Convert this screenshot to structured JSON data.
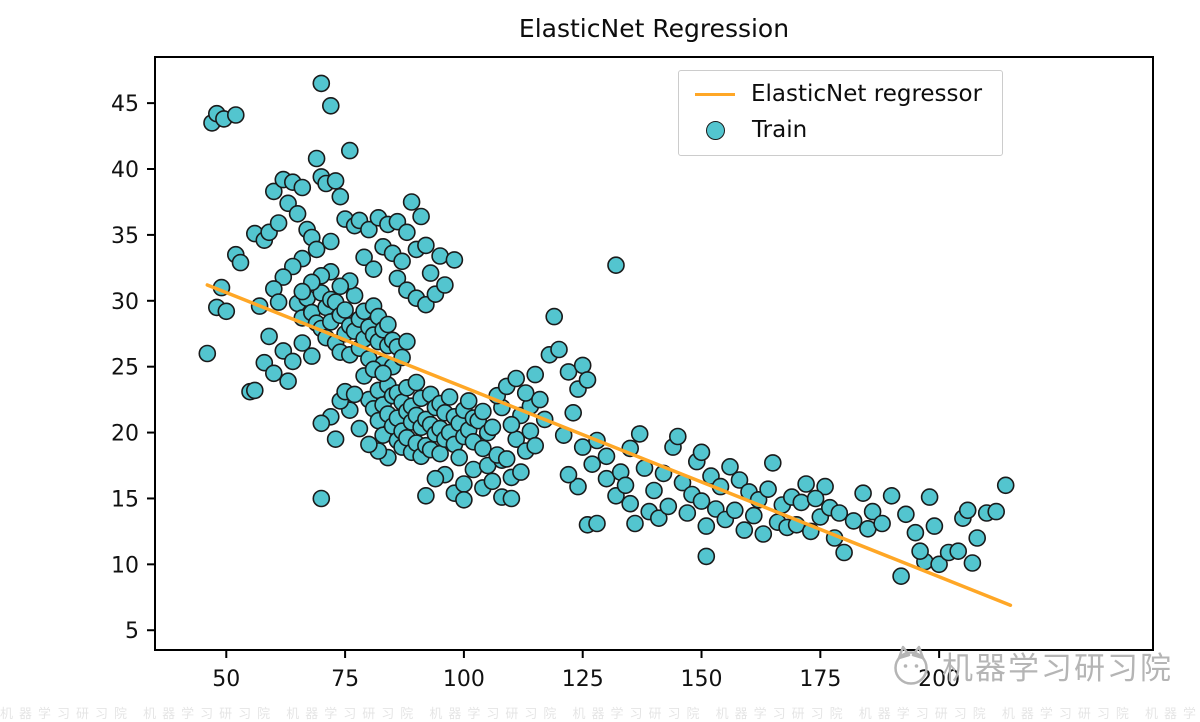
{
  "page_title": "ElasticNet Regression",
  "watermark": {
    "text": "机器学习研习院"
  },
  "chart_data": {
    "type": "scatter",
    "title": "ElasticNet Regression",
    "xlabel": "",
    "ylabel": "",
    "xlim": [
      35,
      245
    ],
    "ylim": [
      3.5,
      48.5
    ],
    "x_ticks": [
      50,
      75,
      100,
      125,
      150,
      175,
      200
    ],
    "y_ticks": [
      5,
      10,
      15,
      20,
      25,
      30,
      35,
      40,
      45
    ],
    "grid": false,
    "legend": {
      "position": "upper right",
      "entries": [
        {
          "label": "ElasticNet regressor",
          "type": "line",
          "color": "#ffa726"
        },
        {
          "label": "Train",
          "type": "marker",
          "color": "#53c5cf"
        }
      ]
    },
    "series": [
      {
        "name": "ElasticNet regressor",
        "type": "line",
        "color": "#ffa726",
        "points": [
          [
            46,
            31.2
          ],
          [
            215,
            6.9
          ]
        ]
      },
      {
        "name": "Train",
        "type": "scatter",
        "marker_color": "#53c5cf",
        "edge_color": "#1a1a1a",
        "points": [
          [
            47,
            43.5
          ],
          [
            48,
            44.2
          ],
          [
            49.5,
            43.8
          ],
          [
            52,
            44.1
          ],
          [
            46,
            26
          ],
          [
            48,
            29.5
          ],
          [
            49,
            31
          ],
          [
            50,
            29.2
          ],
          [
            52,
            33.5
          ],
          [
            53,
            32.9
          ],
          [
            55,
            23.1
          ],
          [
            57,
            29.6
          ],
          [
            58,
            25.3
          ],
          [
            56,
            35.1
          ],
          [
            58,
            34.6
          ],
          [
            59,
            35.2
          ],
          [
            60,
            38.3
          ],
          [
            61,
            35.9
          ],
          [
            62,
            39.2
          ],
          [
            63,
            37.4
          ],
          [
            64,
            39
          ],
          [
            65,
            36.6
          ],
          [
            66,
            38.6
          ],
          [
            67,
            35.4
          ],
          [
            68,
            34.8
          ],
          [
            69,
            40.8
          ],
          [
            70,
            46.5
          ],
          [
            72,
            44.8
          ],
          [
            76,
            41.4
          ],
          [
            70,
            39.4
          ],
          [
            71,
            38.9
          ],
          [
            73,
            39.1
          ],
          [
            74,
            37.9
          ],
          [
            75,
            36.2
          ],
          [
            77,
            35.7
          ],
          [
            72,
            34.5
          ],
          [
            69,
            33.9
          ],
          [
            66,
            33.2
          ],
          [
            64,
            32.6
          ],
          [
            62,
            31.8
          ],
          [
            60,
            30.9
          ],
          [
            59,
            27.3
          ],
          [
            60,
            24.5
          ],
          [
            62,
            26.2
          ],
          [
            63,
            23.9
          ],
          [
            64,
            25.4
          ],
          [
            66,
            26.8
          ],
          [
            68,
            25.8
          ],
          [
            56,
            23.2
          ],
          [
            61,
            29.9
          ],
          [
            65,
            29.8
          ],
          [
            66,
            28.7
          ],
          [
            67,
            30.2
          ],
          [
            68,
            29.1
          ],
          [
            69,
            28.3
          ],
          [
            70,
            30.6
          ],
          [
            70,
            27.9
          ],
          [
            71,
            29.5
          ],
          [
            71,
            27.2
          ],
          [
            72,
            30.1
          ],
          [
            72,
            28.4
          ],
          [
            73,
            29.9
          ],
          [
            73,
            26.8
          ],
          [
            74,
            28.9
          ],
          [
            74,
            26.1
          ],
          [
            75,
            29.3
          ],
          [
            75,
            27.5
          ],
          [
            76,
            28.1
          ],
          [
            76,
            25.9
          ],
          [
            77,
            27.7
          ],
          [
            77,
            30.4
          ],
          [
            78,
            28.6
          ],
          [
            78,
            26.4
          ],
          [
            79,
            27.1
          ],
          [
            79,
            29.2
          ],
          [
            80,
            28
          ],
          [
            80,
            25.6
          ],
          [
            81,
            27.4
          ],
          [
            81,
            29.6
          ],
          [
            82,
            26.9
          ],
          [
            82,
            28.8
          ],
          [
            83,
            27.8
          ],
          [
            83,
            25.2
          ],
          [
            84,
            26.6
          ],
          [
            84,
            28.2
          ],
          [
            85,
            27
          ],
          [
            85,
            25
          ],
          [
            86,
            26.5
          ],
          [
            87,
            25.7
          ],
          [
            88,
            26.9
          ],
          [
            78,
            36.1
          ],
          [
            80,
            35.4
          ],
          [
            82,
            36.3
          ],
          [
            84,
            35.8
          ],
          [
            86,
            36
          ],
          [
            88,
            35.2
          ],
          [
            83,
            34.1
          ],
          [
            85,
            33.6
          ],
          [
            87,
            33
          ],
          [
            79,
            33.3
          ],
          [
            81,
            32.4
          ],
          [
            86,
            31.7
          ],
          [
            88,
            30.8
          ],
          [
            90,
            33.9
          ],
          [
            92,
            34.2
          ],
          [
            91,
            36.4
          ],
          [
            89,
            37.5
          ],
          [
            93,
            32.1
          ],
          [
            95,
            33.4
          ],
          [
            90,
            30.2
          ],
          [
            92,
            29.7
          ],
          [
            94,
            30.5
          ],
          [
            96,
            31.2
          ],
          [
            98,
            33.1
          ],
          [
            76,
            31.5
          ],
          [
            74,
            31.1
          ],
          [
            72,
            32.2
          ],
          [
            70,
            31.9
          ],
          [
            68,
            31.4
          ],
          [
            66,
            30.7
          ],
          [
            80,
            22.5
          ],
          [
            81,
            21.8
          ],
          [
            82,
            23.2
          ],
          [
            82,
            20.9
          ],
          [
            83,
            22.1
          ],
          [
            83,
            19.8
          ],
          [
            84,
            21.4
          ],
          [
            84,
            23.6
          ],
          [
            85,
            20.5
          ],
          [
            85,
            22.8
          ],
          [
            86,
            19.4
          ],
          [
            86,
            21.1
          ],
          [
            86,
            23
          ],
          [
            87,
            20.1
          ],
          [
            87,
            22.3
          ],
          [
            87,
            18.9
          ],
          [
            88,
            21.6
          ],
          [
            88,
            19.6
          ],
          [
            88,
            23.4
          ],
          [
            89,
            20.8
          ],
          [
            89,
            18.5
          ],
          [
            89,
            22
          ],
          [
            90,
            21.3
          ],
          [
            90,
            19.2
          ],
          [
            90,
            23.8
          ],
          [
            91,
            20.4
          ],
          [
            91,
            18.2
          ],
          [
            91,
            22.6
          ],
          [
            92,
            21
          ],
          [
            92,
            19
          ],
          [
            93,
            20.6
          ],
          [
            93,
            22.9
          ],
          [
            93,
            18.7
          ],
          [
            94,
            21.9
          ],
          [
            94,
            19.9
          ],
          [
            95,
            20.3
          ],
          [
            95,
            18.4
          ],
          [
            95,
            22.2
          ],
          [
            96,
            21.5
          ],
          [
            96,
            19.5
          ],
          [
            97,
            20
          ],
          [
            97,
            22.7
          ],
          [
            98,
            19.1
          ],
          [
            98,
            21.2
          ],
          [
            99,
            20.7
          ],
          [
            99,
            18.1
          ],
          [
            100,
            21.7
          ],
          [
            100,
            19.7
          ],
          [
            101,
            20.2
          ],
          [
            101,
            22.4
          ],
          [
            102,
            19.3
          ],
          [
            102,
            21.1
          ],
          [
            103,
            20.9
          ],
          [
            104,
            18.8
          ],
          [
            104,
            21.6
          ],
          [
            105,
            20
          ],
          [
            84,
            18.1
          ],
          [
            82,
            18.6
          ],
          [
            80,
            19.1
          ],
          [
            78,
            20.3
          ],
          [
            76,
            21.7
          ],
          [
            74,
            22.4
          ],
          [
            72,
            21.2
          ],
          [
            70,
            20.7
          ],
          [
            73,
            19.5
          ],
          [
            75,
            23.1
          ],
          [
            77,
            22.9
          ],
          [
            79,
            24.3
          ],
          [
            81,
            24.8
          ],
          [
            83,
            24.5
          ],
          [
            96,
            16.8
          ],
          [
            98,
            15.4
          ],
          [
            100,
            16.1
          ],
          [
            100,
            14.9
          ],
          [
            102,
            17.2
          ],
          [
            104,
            15.8
          ],
          [
            105,
            17.5
          ],
          [
            106,
            16.3
          ],
          [
            108,
            15.1
          ],
          [
            108,
            17.9
          ],
          [
            110,
            16.6
          ],
          [
            110,
            15
          ],
          [
            112,
            17
          ],
          [
            107,
            18.3
          ],
          [
            109,
            18
          ],
          [
            111,
            19.5
          ],
          [
            113,
            18.6
          ],
          [
            114,
            20.1
          ],
          [
            115,
            19
          ],
          [
            112,
            21.3
          ],
          [
            114,
            22
          ],
          [
            110,
            20.6
          ],
          [
            108,
            21.9
          ],
          [
            106,
            20.4
          ],
          [
            107,
            22.8
          ],
          [
            109,
            23.5
          ],
          [
            111,
            24.1
          ],
          [
            113,
            23
          ],
          [
            115,
            24.4
          ],
          [
            116,
            22.5
          ],
          [
            117,
            21
          ],
          [
            70,
            15
          ],
          [
            92,
            15.2
          ],
          [
            94,
            16.5
          ],
          [
            118,
            25.9
          ],
          [
            120,
            26.3
          ],
          [
            119,
            28.8
          ],
          [
            122,
            24.6
          ],
          [
            124,
            23.3
          ],
          [
            125,
            25.1
          ],
          [
            126,
            24
          ],
          [
            123,
            21.5
          ],
          [
            121,
            19.8
          ],
          [
            125,
            18.9
          ],
          [
            127,
            17.6
          ],
          [
            128,
            19.4
          ],
          [
            130,
            18.2
          ],
          [
            132,
            32.7
          ],
          [
            130,
            16.5
          ],
          [
            132,
            15.2
          ],
          [
            133,
            17
          ],
          [
            134,
            16
          ],
          [
            135,
            14.6
          ],
          [
            135,
            18.8
          ],
          [
            137,
            19.9
          ],
          [
            138,
            17.3
          ],
          [
            136,
            13.1
          ],
          [
            139,
            14
          ],
          [
            140,
            15.6
          ],
          [
            141,
            13.5
          ],
          [
            142,
            16.9
          ],
          [
            143,
            14.4
          ],
          [
            144,
            18.9
          ],
          [
            145,
            19.7
          ],
          [
            146,
            16.2
          ],
          [
            147,
            13.9
          ],
          [
            148,
            15.3
          ],
          [
            149,
            17.8
          ],
          [
            150,
            14.8
          ],
          [
            150,
            18.5
          ],
          [
            126,
            13
          ],
          [
            128,
            13.1
          ],
          [
            124,
            15.9
          ],
          [
            122,
            16.8
          ],
          [
            151,
            12.9
          ],
          [
            152,
            16.7
          ],
          [
            153,
            14.2
          ],
          [
            154,
            15.9
          ],
          [
            155,
            13.4
          ],
          [
            156,
            17.4
          ],
          [
            157,
            14.1
          ],
          [
            158,
            16.4
          ],
          [
            159,
            12.6
          ],
          [
            160,
            15.5
          ],
          [
            161,
            13.7
          ],
          [
            162,
            14.9
          ],
          [
            163,
            12.3
          ],
          [
            164,
            15.7
          ],
          [
            165,
            17.7
          ],
          [
            166,
            13.2
          ],
          [
            167,
            14.5
          ],
          [
            168,
            12.8
          ],
          [
            169,
            15.1
          ],
          [
            170,
            13
          ],
          [
            171,
            14.7
          ],
          [
            172,
            16.1
          ],
          [
            173,
            12.5
          ],
          [
            175,
            13.6
          ],
          [
            176,
            15.9
          ],
          [
            177,
            14.3
          ],
          [
            178,
            12
          ],
          [
            151,
            10.6
          ],
          [
            174,
            15
          ],
          [
            179,
            13.9
          ],
          [
            180,
            10.9
          ],
          [
            182,
            13.3
          ],
          [
            184,
            15.4
          ],
          [
            185,
            12.7
          ],
          [
            186,
            14
          ],
          [
            188,
            13.1
          ],
          [
            190,
            15.2
          ],
          [
            192,
            9.1
          ],
          [
            193,
            13.8
          ],
          [
            195,
            12.4
          ],
          [
            197,
            10.2
          ],
          [
            198,
            15.1
          ],
          [
            199,
            12.9
          ],
          [
            200,
            10
          ],
          [
            202,
            10.9
          ],
          [
            204,
            11
          ],
          [
            205,
            13.5
          ],
          [
            206,
            14.1
          ],
          [
            208,
            12
          ],
          [
            210,
            13.9
          ],
          [
            212,
            14
          ],
          [
            214,
            16
          ],
          [
            207,
            10.1
          ],
          [
            196,
            11
          ]
        ]
      }
    ]
  }
}
